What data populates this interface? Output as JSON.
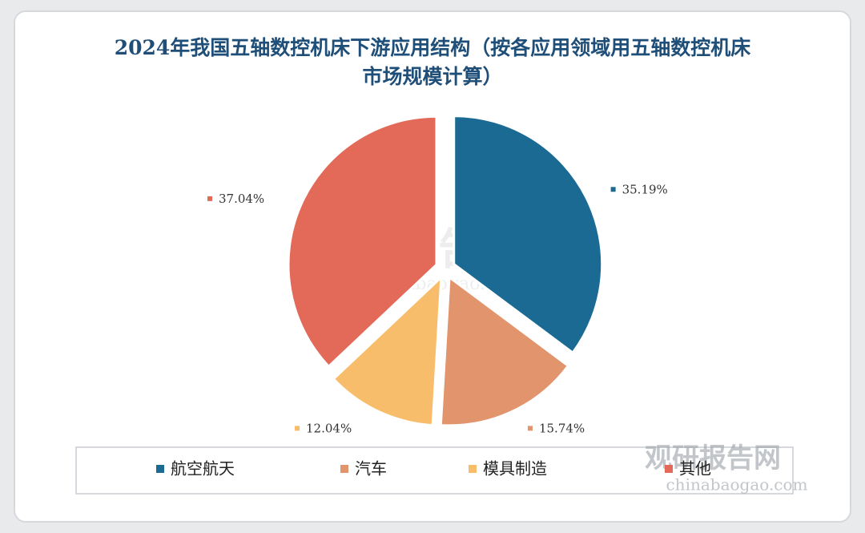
{
  "chart_data": {
    "type": "pie",
    "title": "2024年我国五轴数控机床下游应用结构（按各应用领域用五轴数控机床市场规模计算）",
    "categories": [
      "航空航天",
      "汽车",
      "模具制造",
      "其他"
    ],
    "values": [
      35.19,
      15.74,
      12.04,
      37.04
    ],
    "value_labels": [
      "35.19%",
      "15.74%",
      "12.04%",
      "37.04%"
    ],
    "colors": [
      "#1b6a93",
      "#e2946c",
      "#f8bd6b",
      "#e36a58"
    ],
    "legend": "bottom"
  },
  "watermark": {
    "name": "观研报告网",
    "url": "chinabaogao.com"
  }
}
